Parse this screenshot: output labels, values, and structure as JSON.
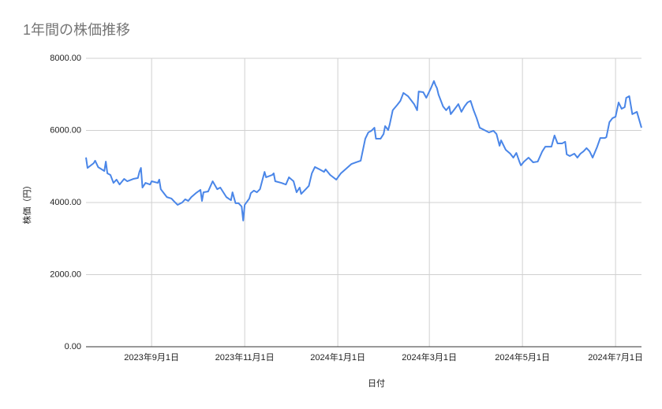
{
  "chart_data": {
    "type": "line",
    "title": "1年間の株価推移",
    "x_label": "日付",
    "y_label": "株価（円）",
    "xlim": [
      "2023-07-20",
      "2024-07-18"
    ],
    "xticks": [
      {
        "value": "2023-09-01",
        "label": "2023年9月1日"
      },
      {
        "value": "2023-11-01",
        "label": "2023年11月1日"
      },
      {
        "value": "2024-01-01",
        "label": "2024年1月1日"
      },
      {
        "value": "2024-03-01",
        "label": "2024年3月1日"
      },
      {
        "value": "2024-05-01",
        "label": "2024年5月1日"
      },
      {
        "value": "2024-07-01",
        "label": "2024年7月1日"
      }
    ],
    "ylim": [
      0,
      8000
    ],
    "yticks": [
      {
        "value": 0,
        "label": "0.00"
      },
      {
        "value": 2000,
        "label": "2000.00"
      },
      {
        "value": 4000,
        "label": "4000.00"
      },
      {
        "value": 6000,
        "label": "6000.00"
      },
      {
        "value": 8000,
        "label": "8000.00"
      }
    ],
    "grid": true,
    "color": "#4a86e8",
    "x": [
      "2023-07-20",
      "2023-07-21",
      "2023-07-25",
      "2023-07-26",
      "2023-07-28",
      "2023-08-01",
      "2023-08-02",
      "2023-08-03",
      "2023-08-05",
      "2023-08-07",
      "2023-08-09",
      "2023-08-11",
      "2023-08-14",
      "2023-08-16",
      "2023-08-20",
      "2023-08-23",
      "2023-08-24",
      "2023-08-25",
      "2023-08-26",
      "2023-08-28",
      "2023-08-31",
      "2023-09-01",
      "2023-09-05",
      "2023-09-06",
      "2023-09-07",
      "2023-09-09",
      "2023-09-11",
      "2023-09-14",
      "2023-09-16",
      "2023-09-18",
      "2023-09-21",
      "2023-09-23",
      "2023-09-25",
      "2023-09-27",
      "2023-09-30",
      "2023-10-03",
      "2023-10-04",
      "2023-10-05",
      "2023-10-08",
      "2023-10-11",
      "2023-10-14",
      "2023-10-16",
      "2023-10-20",
      "2023-10-23",
      "2023-10-24",
      "2023-10-26",
      "2023-10-28",
      "2023-10-30",
      "2023-10-31",
      "2023-11-01",
      "2023-11-04",
      "2023-11-05",
      "2023-11-07",
      "2023-11-09",
      "2023-11-11",
      "2023-11-14",
      "2023-11-15",
      "2023-11-19",
      "2023-11-20",
      "2023-11-21",
      "2023-11-25",
      "2023-11-28",
      "2023-11-30",
      "2023-12-03",
      "2023-12-05",
      "2023-12-07",
      "2023-12-08",
      "2023-12-11",
      "2023-12-13",
      "2023-12-15",
      "2023-12-17",
      "2023-12-20",
      "2023-12-23",
      "2023-12-24",
      "2023-12-27",
      "2023-12-31",
      "2024-01-03",
      "2024-01-07",
      "2024-01-10",
      "2024-01-13",
      "2024-01-16",
      "2024-01-19",
      "2024-01-21",
      "2024-01-23",
      "2024-01-25",
      "2024-01-26",
      "2024-01-29",
      "2024-01-31",
      "2024-02-01",
      "2024-02-03",
      "2024-02-04",
      "2024-02-06",
      "2024-02-09",
      "2024-02-11",
      "2024-02-13",
      "2024-02-16",
      "2024-02-20",
      "2024-02-22",
      "2024-02-23",
      "2024-02-26",
      "2024-02-28",
      "2024-03-02",
      "2024-03-04",
      "2024-03-05",
      "2024-03-06",
      "2024-03-07",
      "2024-03-10",
      "2024-03-12",
      "2024-03-14",
      "2024-03-15",
      "2024-03-17",
      "2024-03-20",
      "2024-03-22",
      "2024-03-24",
      "2024-03-26",
      "2024-03-28",
      "2024-03-30",
      "2024-04-01",
      "2024-04-03",
      "2024-04-07",
      "2024-04-09",
      "2024-04-12",
      "2024-04-14",
      "2024-04-16",
      "2024-04-17",
      "2024-04-20",
      "2024-04-23",
      "2024-04-25",
      "2024-04-27",
      "2024-04-29",
      "2024-04-30",
      "2024-05-02",
      "2024-05-05",
      "2024-05-08",
      "2024-05-11",
      "2024-05-14",
      "2024-05-16",
      "2024-05-20",
      "2024-05-22",
      "2024-05-24",
      "2024-05-27",
      "2024-05-29",
      "2024-05-30",
      "2024-06-01",
      "2024-06-04",
      "2024-06-06",
      "2024-06-08",
      "2024-06-10",
      "2024-06-12",
      "2024-06-14",
      "2024-06-16",
      "2024-06-19",
      "2024-06-21",
      "2024-06-24",
      "2024-06-25",
      "2024-06-27",
      "2024-06-29",
      "2024-07-01",
      "2024-07-03",
      "2024-07-05",
      "2024-07-07",
      "2024-07-08",
      "2024-07-10",
      "2024-07-12",
      "2024-07-15",
      "2024-07-18"
    ],
    "values": [
      5250,
      4960,
      5090,
      5160,
      4980,
      4875,
      5135,
      4810,
      4765,
      4545,
      4635,
      4500,
      4655,
      4590,
      4655,
      4680,
      4850,
      4960,
      4415,
      4545,
      4500,
      4590,
      4545,
      4635,
      4370,
      4260,
      4150,
      4110,
      4020,
      3935,
      4000,
      4090,
      4045,
      4150,
      4260,
      4350,
      4045,
      4285,
      4305,
      4590,
      4370,
      4415,
      4150,
      4065,
      4285,
      3980,
      3980,
      3890,
      3500,
      3935,
      4110,
      4260,
      4330,
      4285,
      4370,
      4850,
      4700,
      4765,
      4810,
      4590,
      4545,
      4500,
      4700,
      4590,
      4285,
      4415,
      4240,
      4370,
      4460,
      4810,
      4985,
      4920,
      4850,
      4920,
      4765,
      4635,
      4810,
      4960,
      5070,
      5115,
      5160,
      5770,
      5945,
      5990,
      6075,
      5770,
      5770,
      5900,
      6120,
      6010,
      6165,
      6560,
      6710,
      6820,
      7040,
      6950,
      6730,
      6560,
      7080,
      7060,
      6905,
      7170,
      7370,
      7255,
      7170,
      6995,
      6665,
      6560,
      6665,
      6450,
      6560,
      6730,
      6515,
      6665,
      6775,
      6820,
      6560,
      6340,
      6075,
      5990,
      5945,
      5990,
      5900,
      5575,
      5725,
      5465,
      5355,
      5245,
      5375,
      5135,
      5030,
      5135,
      5245,
      5115,
      5135,
      5420,
      5550,
      5550,
      5860,
      5640,
      5640,
      5685,
      5335,
      5290,
      5355,
      5245,
      5355,
      5420,
      5510,
      5420,
      5245,
      5550,
      5790,
      5790,
      5815,
      6230,
      6340,
      6380,
      6775,
      6600,
      6645,
      6905,
      6950,
      6450,
      6515,
      6075
    ]
  }
}
